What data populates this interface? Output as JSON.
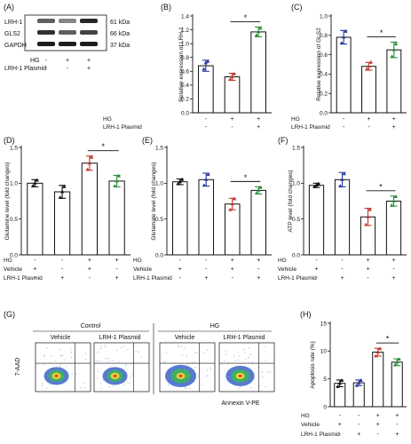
{
  "panel_letters": [
    "(A)",
    "(B)",
    "(C)",
    "(D)",
    "(E)",
    "(F)",
    "(G)",
    "(H)"
  ],
  "blot": {
    "bands": [
      {
        "name": "LRH-1",
        "mw": "61 kDa",
        "intensities": [
          0.55,
          0.35,
          0.85
        ]
      },
      {
        "name": "GLS2",
        "mw": "66 kDa",
        "intensities": [
          0.8,
          0.55,
          0.7
        ]
      },
      {
        "name": "GAPDH",
        "mw": "37 kDa",
        "intensities": [
          0.9,
          0.9,
          0.9
        ]
      }
    ],
    "conditions": [
      {
        "label": "HG",
        "signs": [
          "-",
          "+",
          "+"
        ]
      },
      {
        "label": "LRH-1 Plasmid",
        "signs": [
          "-",
          "-",
          "+"
        ]
      }
    ]
  },
  "flow": {
    "group_labels": [
      "Control",
      "HG"
    ],
    "column_labels": [
      "Vehicle",
      "LRH-1 Plasmid",
      "Vehicle",
      "LRH-1 Plasmid"
    ],
    "y_label": "7-AAD",
    "x_label": "Annexin V-PE"
  },
  "chart_data": [
    {
      "panel": "B",
      "type": "bar",
      "ylabel": "Relative expression of LRH-1",
      "ylim": [
        0.0,
        1.4
      ],
      "yticks": [
        0.0,
        0.2,
        0.4,
        0.6,
        0.8,
        1.0,
        1.2,
        1.4
      ],
      "tick_decimals": 1,
      "values": [
        0.68,
        0.52,
        1.17
      ],
      "errors": [
        0.08,
        0.05,
        0.07
      ],
      "colors": [
        "#2b3a9e",
        "#c0392b",
        "#2e8b3a"
      ],
      "points": [
        [
          0.63,
          0.72,
          0.74
        ],
        [
          0.48,
          0.52,
          0.56
        ],
        [
          1.12,
          1.17,
          1.22
        ]
      ],
      "conditions": [
        {
          "label": "HG",
          "signs": [
            "-",
            "+",
            "+"
          ]
        },
        {
          "label": "LRH-1 Plasmid",
          "signs": [
            "-",
            "-",
            "+"
          ]
        }
      ],
      "significance": [
        {
          "from": 1,
          "to": 2,
          "text": "*"
        }
      ]
    },
    {
      "panel": "C",
      "type": "bar",
      "ylabel": "Relative expression of GLS2",
      "ylim": [
        0.0,
        1.0
      ],
      "yticks": [
        0.0,
        0.2,
        0.4,
        0.6,
        0.8,
        1.0
      ],
      "tick_decimals": 1,
      "values": [
        0.78,
        0.48,
        0.65
      ],
      "errors": [
        0.07,
        0.04,
        0.08
      ],
      "colors": [
        "#2b3a9e",
        "#c0392b",
        "#2e8b3a"
      ],
      "points": [
        [
          0.72,
          0.78,
          0.84
        ],
        [
          0.45,
          0.48,
          0.52
        ],
        [
          0.58,
          0.65,
          0.71
        ]
      ],
      "conditions": [
        {
          "label": "HG",
          "signs": [
            "-",
            "+",
            "+"
          ]
        },
        {
          "label": "LRH-1 Plasmid",
          "signs": [
            "-",
            "-",
            "+"
          ]
        }
      ],
      "significance": [
        {
          "from": 1,
          "to": 2,
          "text": "*"
        }
      ]
    },
    {
      "panel": "D",
      "type": "bar",
      "ylabel": "Glutamine level (fold changes)",
      "ylim": [
        0.0,
        1.5
      ],
      "yticks": [
        0.0,
        0.5,
        1.0,
        1.5
      ],
      "tick_decimals": 1,
      "values": [
        1.0,
        0.88,
        1.28,
        1.03
      ],
      "errors": [
        0.05,
        0.09,
        0.1,
        0.08
      ],
      "colors": [
        "#111111",
        "#111111",
        "#c0392b",
        "#2e8b3a"
      ],
      "points": [
        [
          0.96,
          1.0,
          1.04
        ],
        [
          0.8,
          0.88,
          0.95
        ],
        [
          1.19,
          1.28,
          1.36
        ],
        [
          0.96,
          1.03,
          1.1
        ]
      ],
      "conditions": [
        {
          "label": "HG",
          "signs": [
            "-",
            "-",
            "+",
            "+"
          ]
        },
        {
          "label": "Vehicle",
          "signs": [
            "+",
            "-",
            "+",
            "-"
          ]
        },
        {
          "label": "LRH-1 Plasmid",
          "signs": [
            "-",
            "+",
            "-",
            "+"
          ]
        }
      ],
      "significance": [
        {
          "from": 2,
          "to": 3,
          "text": "*"
        }
      ]
    },
    {
      "panel": "E",
      "type": "bar",
      "ylabel": "Glutamate level (fold changes)",
      "ylim": [
        0.0,
        1.5
      ],
      "yticks": [
        0.0,
        0.5,
        1.0,
        1.5
      ],
      "tick_decimals": 1,
      "values": [
        1.02,
        1.05,
        0.71,
        0.9
      ],
      "errors": [
        0.04,
        0.09,
        0.08,
        0.05
      ],
      "colors": [
        "#111111",
        "#2b3a9e",
        "#c0392b",
        "#2e8b3a"
      ],
      "points": [
        [
          0.99,
          1.02,
          1.05
        ],
        [
          0.97,
          1.05,
          1.12
        ],
        [
          0.63,
          0.71,
          0.78
        ],
        [
          0.86,
          0.9,
          0.94
        ]
      ],
      "conditions": [
        {
          "label": "HG",
          "signs": [
            "-",
            "-",
            "+",
            "+"
          ]
        },
        {
          "label": "Vehicle",
          "signs": [
            "+",
            "-",
            "+",
            "-"
          ]
        },
        {
          "label": "LRH-1 Plasmid",
          "signs": [
            "-",
            "+",
            "-",
            "+"
          ]
        }
      ],
      "significance": [
        {
          "from": 2,
          "to": 3,
          "text": "*"
        }
      ]
    },
    {
      "panel": "F",
      "type": "bar",
      "ylabel": "ATP level (fold changes)",
      "ylim": [
        0.0,
        1.5
      ],
      "yticks": [
        0.0,
        0.5,
        1.0,
        1.5
      ],
      "tick_decimals": 1,
      "values": [
        0.97,
        1.05,
        0.53,
        0.75
      ],
      "errors": [
        0.03,
        0.1,
        0.12,
        0.07
      ],
      "colors": [
        "#111111",
        "#2b3a9e",
        "#c0392b",
        "#2e8b3a"
      ],
      "points": [
        [
          0.95,
          0.97,
          0.99
        ],
        [
          0.96,
          1.05,
          1.13
        ],
        [
          0.42,
          0.53,
          0.63
        ],
        [
          0.69,
          0.75,
          0.81
        ]
      ],
      "conditions": [
        {
          "label": "HG",
          "signs": [
            "-",
            "-",
            "+",
            "+"
          ]
        },
        {
          "label": "Vehicle",
          "signs": [
            "+",
            "-",
            "+",
            "-"
          ]
        },
        {
          "label": "LRH-1 Plasmid",
          "signs": [
            "-",
            "+",
            "-",
            "+"
          ]
        }
      ],
      "significance": [
        {
          "from": 2,
          "to": 3,
          "text": "*"
        }
      ]
    },
    {
      "panel": "H",
      "type": "bar",
      "ylabel": "Apoptosis rate (%)",
      "ylim": [
        0,
        15
      ],
      "yticks": [
        0,
        5,
        10,
        15
      ],
      "tick_decimals": 0,
      "values": [
        4.2,
        4.3,
        9.8,
        8.0
      ],
      "errors": [
        0.6,
        0.5,
        0.7,
        0.6
      ],
      "colors": [
        "#111111",
        "#2b3a9e",
        "#c0392b",
        "#2e8b3a"
      ],
      "points": [
        [
          3.6,
          4.2,
          4.7
        ],
        [
          3.8,
          4.3,
          4.7
        ],
        [
          9.1,
          9.8,
          10.4
        ],
        [
          7.5,
          8.0,
          8.5
        ]
      ],
      "conditions": [
        {
          "label": "HG",
          "signs": [
            "-",
            "-",
            "+",
            "+"
          ]
        },
        {
          "label": "Vehicle",
          "signs": [
            "+",
            "-",
            "+",
            "-"
          ]
        },
        {
          "label": "LRH-1 Plasmid",
          "signs": [
            "-",
            "+",
            "-",
            "+"
          ]
        }
      ],
      "significance": [
        {
          "from": 2,
          "to": 3,
          "text": "*"
        }
      ]
    }
  ]
}
